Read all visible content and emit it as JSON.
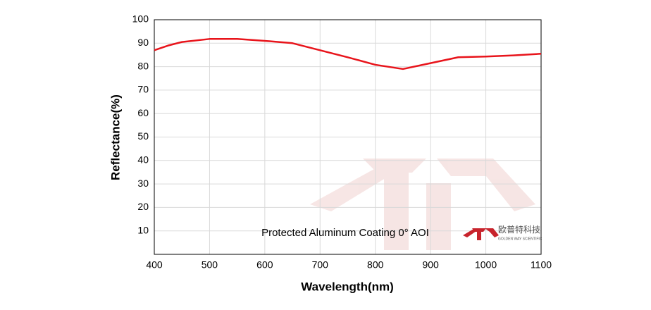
{
  "chart_data": {
    "type": "line",
    "x_label": "Wavelength(nm)",
    "y_label": "Reflectance(%)",
    "annotation": "Protected Aluminum Coating  0°  AOI",
    "logo_text": "欧普特科技",
    "logo_subtext": "GOLDEN WAY SCIENTIFIC",
    "x": [
      400,
      425,
      450,
      500,
      550,
      600,
      650,
      700,
      750,
      800,
      850,
      900,
      950,
      1000,
      1050,
      1100
    ],
    "series": [
      {
        "name": "Reflectance",
        "color": "#e8141b",
        "values": [
          87,
          89,
          90.5,
          91.8,
          91.8,
          91,
          90,
          87,
          84,
          80.8,
          79,
          81.5,
          84,
          84.3,
          84.8,
          85.5
        ]
      }
    ],
    "xlim": [
      400,
      1100
    ],
    "xticks": [
      400,
      500,
      600,
      700,
      800,
      900,
      1000,
      1100
    ],
    "ylim": [
      0,
      100
    ],
    "yticks": [
      10,
      20,
      30,
      40,
      50,
      60,
      70,
      80,
      90,
      100
    ],
    "grid": true
  }
}
